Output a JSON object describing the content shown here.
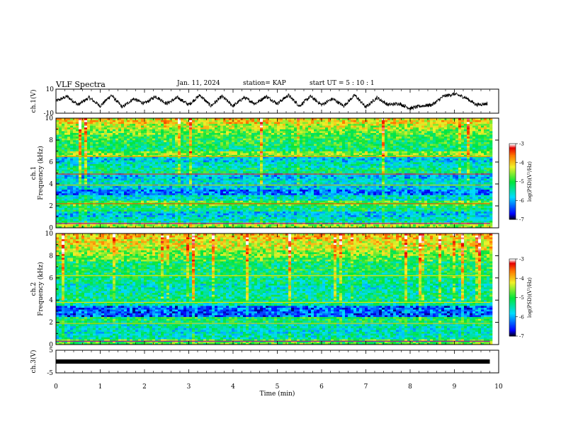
{
  "header": {
    "title": "VLF Spectra",
    "date": "Jan. 11, 2024",
    "station": "station= KAP",
    "start_ut": "start UT = 5 : 10 : 1"
  },
  "chart_data": [
    {
      "type": "line",
      "name": "ch1-waveform",
      "ylabel": "ch.1(V)",
      "ylim": [
        -10,
        10
      ],
      "yticks": [
        10,
        -10
      ],
      "xlim": [
        0,
        10
      ],
      "x": [
        0,
        0.25,
        0.5,
        0.75,
        1,
        1.25,
        1.5,
        1.75,
        2,
        2.25,
        2.5,
        2.75,
        3,
        3.25,
        3.5,
        3.75,
        4,
        4.25,
        4.5,
        4.75,
        5,
        5.25,
        5.5,
        5.75,
        6,
        6.25,
        6.5,
        6.75,
        7,
        7.25,
        7.5,
        7.75,
        8,
        8.25,
        8.5,
        8.75,
        9,
        9.25,
        9.5,
        9.75
      ],
      "y": [
        0,
        4,
        -3,
        3,
        -4,
        5,
        -5,
        2,
        -2,
        4,
        -2,
        3,
        -3,
        5,
        -4,
        4,
        -4,
        3,
        -2,
        4,
        -2,
        5,
        -4,
        4,
        -3,
        2,
        -4,
        5,
        -5,
        3,
        -3,
        -2,
        -6,
        -4,
        -3,
        4,
        6,
        3,
        -3,
        -2
      ]
    },
    {
      "type": "heatmap",
      "name": "ch1-spectrogram",
      "ylabel": "ch.1 Frequency (kHz)",
      "ylim": [
        0,
        10
      ],
      "yticks": [
        0,
        2,
        4,
        6,
        8,
        10
      ],
      "xlim": [
        0,
        10
      ],
      "colorbar": {
        "label": "log(PSD)(V²/Hz)",
        "range": [
          -7,
          -3
        ],
        "ticks": [
          -3,
          -4,
          -5,
          -6,
          -7
        ]
      },
      "freq_bands_khz": [
        0,
        0.5,
        1,
        1.5,
        2,
        2.5,
        3,
        3.5,
        4,
        4.5,
        5,
        5.5,
        6,
        6.5,
        7,
        7.5,
        8,
        8.5,
        9,
        9.5
      ],
      "band_log_psd": [
        -4.5,
        -5.5,
        -5.8,
        -5.2,
        -4.8,
        -5.6,
        -6.2,
        -5.8,
        -5.6,
        -5.9,
        -5.2,
        -5.5,
        -5.8,
        -4.6,
        -5.2,
        -5.0,
        -4.9,
        -4.7,
        -4.4,
        -4.1
      ]
    },
    {
      "type": "heatmap",
      "name": "ch2-spectrogram",
      "ylabel": "ch.2 Frequency (kHz)",
      "ylim": [
        0,
        10
      ],
      "yticks": [
        0,
        2,
        4,
        6,
        8,
        10
      ],
      "xlim": [
        0,
        10
      ],
      "colorbar": {
        "label": "log(PSD)(V²/Hz)",
        "range": [
          -7,
          -3
        ],
        "ticks": [
          -3,
          -4,
          -5,
          -6,
          -7
        ]
      },
      "freq_bands_khz": [
        0,
        0.5,
        1,
        1.5,
        2,
        2.5,
        3,
        3.5,
        4,
        4.5,
        5,
        5.5,
        6,
        6.5,
        7,
        7.5,
        8,
        8.5,
        9,
        9.5
      ],
      "band_log_psd": [
        -4.8,
        -5.5,
        -5.6,
        -5.5,
        -5.1,
        -6.3,
        -6.3,
        -5.4,
        -5.3,
        -5.4,
        -5.5,
        -5.3,
        -5.2,
        -5.1,
        -5.2,
        -4.8,
        -4.6,
        -4.3,
        -4.2,
        -4.0
      ]
    },
    {
      "type": "line",
      "name": "ch3-waveform",
      "ylabel": "ch.3(V)",
      "ylim": [
        -5,
        5
      ],
      "yticks": [
        5,
        0,
        -5
      ],
      "xlim": [
        0,
        10
      ],
      "x": [
        0,
        9.8
      ],
      "y": [
        0,
        0
      ]
    }
  ],
  "xaxis": {
    "label": "Time (min)",
    "ticks": [
      "0",
      "1",
      "2",
      "3",
      "4",
      "5",
      "6",
      "7",
      "8",
      "9",
      "10"
    ]
  }
}
